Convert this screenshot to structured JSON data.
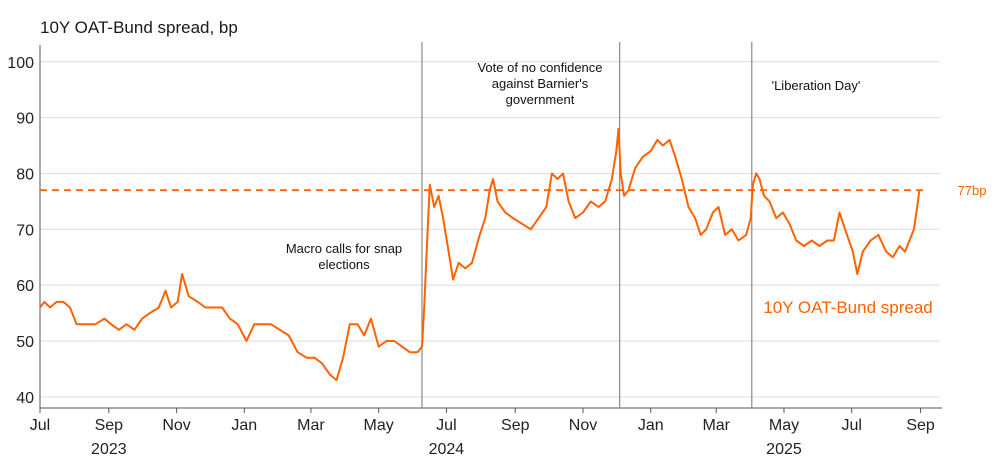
{
  "chart_data": {
    "type": "line",
    "title": "10Y OAT-Bund spread, bp",
    "xlabel": "",
    "ylabel": "",
    "ylim": [
      38,
      103
    ],
    "yticks": [
      40,
      50,
      60,
      70,
      80,
      90,
      100
    ],
    "x_range": [
      "2023-07-01",
      "2025-09-05"
    ],
    "x_month_ticks": [
      {
        "date": "2023-07-01",
        "label": "Jul"
      },
      {
        "date": "2023-09-01",
        "label": "Sep"
      },
      {
        "date": "2023-11-01",
        "label": "Nov"
      },
      {
        "date": "2024-01-01",
        "label": "Jan"
      },
      {
        "date": "2024-03-01",
        "label": "Mar"
      },
      {
        "date": "2024-05-01",
        "label": "May"
      },
      {
        "date": "2024-07-01",
        "label": "Jul"
      },
      {
        "date": "2024-09-01",
        "label": "Sep"
      },
      {
        "date": "2024-11-01",
        "label": "Nov"
      },
      {
        "date": "2025-01-01",
        "label": "Jan"
      },
      {
        "date": "2025-03-01",
        "label": "Mar"
      },
      {
        "date": "2025-05-01",
        "label": "May"
      },
      {
        "date": "2025-07-01",
        "label": "Jul"
      },
      {
        "date": "2025-09-01",
        "label": "Sep"
      }
    ],
    "x_year_labels": [
      {
        "date": "2023-09-01",
        "label": "2023"
      },
      {
        "date": "2024-07-01",
        "label": "2024"
      },
      {
        "date": "2025-05-01",
        "label": "2025"
      }
    ],
    "series": [
      {
        "name": "10Y OAT-Bund spread",
        "color": "#FF6200",
        "points": [
          [
            "2023-07-01",
            56
          ],
          [
            "2023-07-05",
            57
          ],
          [
            "2023-07-10",
            56
          ],
          [
            "2023-07-16",
            57
          ],
          [
            "2023-07-22",
            57
          ],
          [
            "2023-07-28",
            56
          ],
          [
            "2023-08-03",
            53
          ],
          [
            "2023-08-12",
            53
          ],
          [
            "2023-08-20",
            53
          ],
          [
            "2023-08-28",
            54
          ],
          [
            "2023-09-03",
            53
          ],
          [
            "2023-09-10",
            52
          ],
          [
            "2023-09-17",
            53
          ],
          [
            "2023-09-24",
            52
          ],
          [
            "2023-10-01",
            54
          ],
          [
            "2023-10-08",
            55
          ],
          [
            "2023-10-16",
            56
          ],
          [
            "2023-10-22",
            59
          ],
          [
            "2023-10-27",
            56
          ],
          [
            "2023-11-02",
            57
          ],
          [
            "2023-11-06",
            62
          ],
          [
            "2023-11-12",
            58
          ],
          [
            "2023-11-20",
            57
          ],
          [
            "2023-11-27",
            56
          ],
          [
            "2023-12-04",
            56
          ],
          [
            "2023-12-12",
            56
          ],
          [
            "2023-12-19",
            54
          ],
          [
            "2023-12-26",
            53
          ],
          [
            "2024-01-03",
            50
          ],
          [
            "2024-01-10",
            53
          ],
          [
            "2024-01-17",
            53
          ],
          [
            "2024-01-25",
            53
          ],
          [
            "2024-02-02",
            52
          ],
          [
            "2024-02-10",
            51
          ],
          [
            "2024-02-18",
            48
          ],
          [
            "2024-02-26",
            47
          ],
          [
            "2024-03-04",
            47
          ],
          [
            "2024-03-11",
            46
          ],
          [
            "2024-03-18",
            44
          ],
          [
            "2024-03-24",
            43
          ],
          [
            "2024-03-30",
            47
          ],
          [
            "2024-04-05",
            53
          ],
          [
            "2024-04-12",
            53
          ],
          [
            "2024-04-18",
            51
          ],
          [
            "2024-04-24",
            54
          ],
          [
            "2024-05-01",
            49
          ],
          [
            "2024-05-08",
            50
          ],
          [
            "2024-05-15",
            50
          ],
          [
            "2024-05-22",
            49
          ],
          [
            "2024-05-29",
            48
          ],
          [
            "2024-06-05",
            48
          ],
          [
            "2024-06-09",
            49
          ],
          [
            "2024-06-11",
            56
          ],
          [
            "2024-06-13",
            65
          ],
          [
            "2024-06-16",
            78
          ],
          [
            "2024-06-20",
            74
          ],
          [
            "2024-06-24",
            76
          ],
          [
            "2024-06-28",
            72
          ],
          [
            "2024-07-03",
            66
          ],
          [
            "2024-07-07",
            61
          ],
          [
            "2024-07-12",
            64
          ],
          [
            "2024-07-18",
            63
          ],
          [
            "2024-07-24",
            64
          ],
          [
            "2024-07-31",
            69
          ],
          [
            "2024-08-05",
            72
          ],
          [
            "2024-08-09",
            77
          ],
          [
            "2024-08-12",
            79
          ],
          [
            "2024-08-16",
            75
          ],
          [
            "2024-08-23",
            73
          ],
          [
            "2024-08-30",
            72
          ],
          [
            "2024-09-07",
            71
          ],
          [
            "2024-09-15",
            70
          ],
          [
            "2024-09-22",
            72
          ],
          [
            "2024-09-29",
            74
          ],
          [
            "2024-10-04",
            80
          ],
          [
            "2024-10-09",
            79
          ],
          [
            "2024-10-14",
            80
          ],
          [
            "2024-10-19",
            75
          ],
          [
            "2024-10-25",
            72
          ],
          [
            "2024-11-01",
            73
          ],
          [
            "2024-11-08",
            75
          ],
          [
            "2024-11-15",
            74
          ],
          [
            "2024-11-21",
            75
          ],
          [
            "2024-11-27",
            79
          ],
          [
            "2024-12-01",
            84
          ],
          [
            "2024-12-03",
            88
          ],
          [
            "2024-12-05",
            80
          ],
          [
            "2024-12-08",
            76
          ],
          [
            "2024-12-12",
            77
          ],
          [
            "2024-12-18",
            81
          ],
          [
            "2024-12-25",
            83
          ],
          [
            "2025-01-01",
            84
          ],
          [
            "2025-01-07",
            86
          ],
          [
            "2025-01-12",
            85
          ],
          [
            "2025-01-18",
            86
          ],
          [
            "2025-01-23",
            83
          ],
          [
            "2025-01-29",
            79
          ],
          [
            "2025-02-04",
            74
          ],
          [
            "2025-02-10",
            72
          ],
          [
            "2025-02-15",
            69
          ],
          [
            "2025-02-20",
            70
          ],
          [
            "2025-02-26",
            73
          ],
          [
            "2025-03-03",
            74
          ],
          [
            "2025-03-09",
            69
          ],
          [
            "2025-03-15",
            70
          ],
          [
            "2025-03-21",
            68
          ],
          [
            "2025-03-28",
            69
          ],
          [
            "2025-04-01",
            72
          ],
          [
            "2025-04-03",
            78
          ],
          [
            "2025-04-06",
            80
          ],
          [
            "2025-04-09",
            79
          ],
          [
            "2025-04-13",
            76
          ],
          [
            "2025-04-18",
            75
          ],
          [
            "2025-04-24",
            72
          ],
          [
            "2025-04-30",
            73
          ],
          [
            "2025-05-06",
            71
          ],
          [
            "2025-05-12",
            68
          ],
          [
            "2025-05-19",
            67
          ],
          [
            "2025-05-26",
            68
          ],
          [
            "2025-06-02",
            67
          ],
          [
            "2025-06-09",
            68
          ],
          [
            "2025-06-15",
            68
          ],
          [
            "2025-06-20",
            73
          ],
          [
            "2025-06-25",
            70
          ],
          [
            "2025-07-02",
            66
          ],
          [
            "2025-07-06",
            62
          ],
          [
            "2025-07-11",
            66
          ],
          [
            "2025-07-18",
            68
          ],
          [
            "2025-07-25",
            69
          ],
          [
            "2025-08-01",
            66
          ],
          [
            "2025-08-07",
            65
          ],
          [
            "2025-08-13",
            67
          ],
          [
            "2025-08-18",
            66
          ],
          [
            "2025-08-22",
            68
          ],
          [
            "2025-08-26",
            70
          ],
          [
            "2025-08-29",
            74
          ],
          [
            "2025-08-31",
            77
          ]
        ]
      }
    ],
    "series_label": "10Y OAT-Bund spread",
    "reference_line": {
      "value": 77,
      "label": "77bp",
      "style": "dashed"
    },
    "event_lines": [
      {
        "date": "2024-06-09",
        "label": "Macro calls for snap elections"
      },
      {
        "date": "2024-12-04",
        "label": "Vote of no confidence against Barnier's government"
      },
      {
        "date": "2025-04-02",
        "label": "'Liberation Day'"
      }
    ],
    "annotations": [
      {
        "lines": [
          "Macro calls for snap",
          "elections"
        ]
      },
      {
        "lines": [
          "Vote of no confidence",
          "against Barnier's",
          "government"
        ]
      },
      {
        "lines": [
          "'Liberation Day'"
        ]
      }
    ],
    "grid": true,
    "legend": "inline label, lower-right"
  },
  "colors": {
    "series": "#FF6200",
    "grid": "#dddddd",
    "axis": "#555555",
    "event_line": "#8a8a8a"
  }
}
